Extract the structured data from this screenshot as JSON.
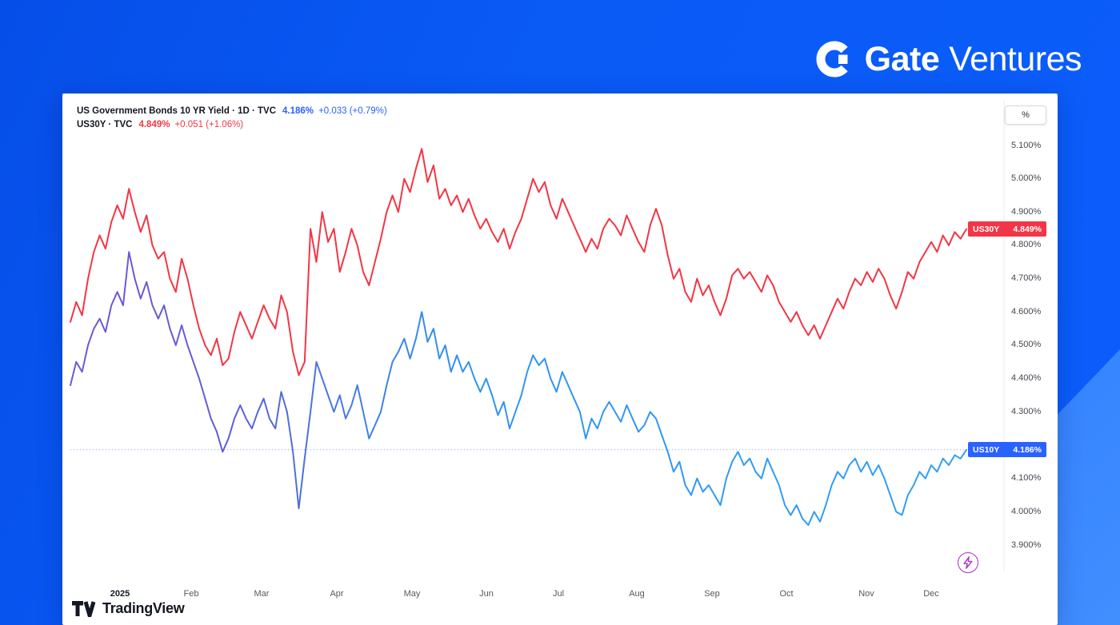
{
  "branding": {
    "gate_text": "Gate",
    "ventures_text": "Ventures"
  },
  "chart": {
    "legend": {
      "line1_title": "US Government Bonds 10 YR Yield · 1D · TVC",
      "line1_value": "4.186%",
      "line1_change": "+0.033 (+0.79%)",
      "line2_title": "US30Y · TVC",
      "line2_value": "4.849%",
      "line2_change": "+0.051 (+1.06%)"
    },
    "unit_button": "%",
    "price_labels": [
      {
        "label": "US30Y",
        "value": "4.849%",
        "v": 4.849,
        "color": "#f23645"
      },
      {
        "label": "US10Y",
        "value": "4.186%",
        "v": 4.186,
        "color": "#2962ff"
      }
    ],
    "watermark": "TradingView"
  },
  "chart_data": {
    "type": "line",
    "title": "US Government Bonds 10 YR Yield (US10Y) vs US30Y, 1D, TVC, 2025",
    "ylabel": "%",
    "ylim": [
      3.9,
      5.1
    ],
    "grid": false,
    "legend_position": "top-left",
    "y_ticks": [
      5.1,
      5.0,
      4.9,
      4.8,
      4.7,
      4.6,
      4.5,
      4.4,
      4.3,
      4.1,
      4.0,
      3.9
    ],
    "x_ticks": [
      {
        "label": "2025",
        "t": 0.055,
        "year": true
      },
      {
        "label": "Feb",
        "t": 0.135
      },
      {
        "label": "Mar",
        "t": 0.213
      },
      {
        "label": "Apr",
        "t": 0.297
      },
      {
        "label": "May",
        "t": 0.381
      },
      {
        "label": "Jun",
        "t": 0.464
      },
      {
        "label": "Jul",
        "t": 0.545
      },
      {
        "label": "Aug",
        "t": 0.632
      },
      {
        "label": "Sep",
        "t": 0.716
      },
      {
        "label": "Oct",
        "t": 0.799
      },
      {
        "label": "Nov",
        "t": 0.888
      },
      {
        "label": "Dec",
        "t": 0.961
      }
    ],
    "price_line": {
      "value": 4.186,
      "style": "dotted",
      "color": "#7da0e8"
    },
    "series": [
      {
        "name": "US30Y",
        "color": "#f23645",
        "last": 4.849,
        "values": [
          4.57,
          4.63,
          4.59,
          4.7,
          4.78,
          4.83,
          4.79,
          4.87,
          4.92,
          4.88,
          4.97,
          4.9,
          4.84,
          4.89,
          4.8,
          4.76,
          4.78,
          4.7,
          4.66,
          4.76,
          4.7,
          4.62,
          4.55,
          4.5,
          4.47,
          4.52,
          4.44,
          4.46,
          4.54,
          4.6,
          4.56,
          4.52,
          4.57,
          4.62,
          4.58,
          4.55,
          4.65,
          4.6,
          4.48,
          4.41,
          4.45,
          4.85,
          4.75,
          4.9,
          4.81,
          4.85,
          4.72,
          4.78,
          4.85,
          4.8,
          4.72,
          4.68,
          4.75,
          4.82,
          4.9,
          4.95,
          4.9,
          5.0,
          4.96,
          5.03,
          5.09,
          4.99,
          5.04,
          4.94,
          4.97,
          4.92,
          4.95,
          4.9,
          4.94,
          4.89,
          4.85,
          4.88,
          4.84,
          4.81,
          4.85,
          4.79,
          4.84,
          4.88,
          4.94,
          5.0,
          4.96,
          4.99,
          4.92,
          4.88,
          4.94,
          4.9,
          4.86,
          4.82,
          4.78,
          4.82,
          4.79,
          4.85,
          4.88,
          4.86,
          4.83,
          4.89,
          4.85,
          4.81,
          4.78,
          4.86,
          4.91,
          4.86,
          4.77,
          4.7,
          4.73,
          4.66,
          4.63,
          4.7,
          4.65,
          4.68,
          4.63,
          4.59,
          4.64,
          4.71,
          4.73,
          4.7,
          4.72,
          4.69,
          4.66,
          4.71,
          4.68,
          4.63,
          4.6,
          4.57,
          4.6,
          4.56,
          4.53,
          4.56,
          4.52,
          4.56,
          4.6,
          4.64,
          4.61,
          4.66,
          4.7,
          4.68,
          4.72,
          4.69,
          4.73,
          4.7,
          4.65,
          4.61,
          4.66,
          4.72,
          4.7,
          4.75,
          4.78,
          4.81,
          4.78,
          4.83,
          4.8,
          4.84,
          4.82,
          4.849
        ]
      },
      {
        "name": "US10Y",
        "color": "#2e96f2",
        "gradient": [
          {
            "offset": "0%",
            "color": "#7059cf"
          },
          {
            "offset": "18%",
            "color": "#5f5fd6"
          },
          {
            "offset": "30%",
            "color": "#4579e3"
          },
          {
            "offset": "44%",
            "color": "#2f93f2"
          },
          {
            "offset": "100%",
            "color": "#31a0f8"
          }
        ],
        "last": 4.186,
        "values": [
          4.38,
          4.45,
          4.42,
          4.5,
          4.55,
          4.58,
          4.54,
          4.62,
          4.66,
          4.62,
          4.78,
          4.7,
          4.64,
          4.69,
          4.62,
          4.58,
          4.62,
          4.55,
          4.5,
          4.56,
          4.5,
          4.45,
          4.4,
          4.34,
          4.28,
          4.24,
          4.18,
          4.22,
          4.28,
          4.32,
          4.28,
          4.25,
          4.3,
          4.34,
          4.28,
          4.25,
          4.36,
          4.3,
          4.18,
          4.01,
          4.16,
          4.3,
          4.45,
          4.4,
          4.35,
          4.3,
          4.35,
          4.28,
          4.32,
          4.38,
          4.3,
          4.22,
          4.26,
          4.3,
          4.38,
          4.45,
          4.48,
          4.52,
          4.46,
          4.52,
          4.6,
          4.51,
          4.55,
          4.46,
          4.5,
          4.42,
          4.47,
          4.42,
          4.45,
          4.4,
          4.36,
          4.4,
          4.35,
          4.29,
          4.33,
          4.25,
          4.3,
          4.35,
          4.42,
          4.47,
          4.44,
          4.46,
          4.4,
          4.36,
          4.42,
          4.38,
          4.34,
          4.3,
          4.22,
          4.28,
          4.25,
          4.3,
          4.33,
          4.3,
          4.27,
          4.32,
          4.28,
          4.24,
          4.26,
          4.3,
          4.28,
          4.23,
          4.18,
          4.12,
          4.15,
          4.08,
          4.05,
          4.1,
          4.06,
          4.08,
          4.05,
          4.02,
          4.1,
          4.15,
          4.18,
          4.14,
          4.16,
          4.12,
          4.1,
          4.16,
          4.12,
          4.08,
          4.02,
          3.99,
          4.02,
          3.98,
          3.96,
          4.0,
          3.97,
          4.02,
          4.08,
          4.12,
          4.1,
          4.14,
          4.16,
          4.12,
          4.15,
          4.11,
          4.14,
          4.1,
          4.05,
          4.0,
          3.99,
          4.05,
          4.08,
          4.12,
          4.1,
          4.14,
          4.12,
          4.16,
          4.14,
          4.17,
          4.16,
          4.186
        ]
      }
    ]
  }
}
